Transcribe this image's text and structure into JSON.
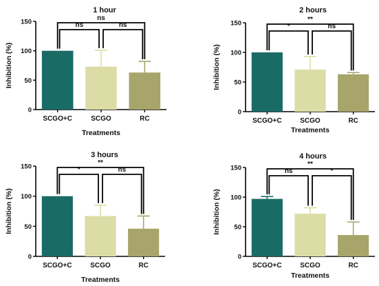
{
  "chart_data": [
    {
      "type": "bar",
      "title": "1 hour",
      "xlabel": "Treatments",
      "ylabel": "Inhibition (%)",
      "ylim": [
        0,
        150
      ],
      "yticks": [
        "0",
        "50",
        "100",
        "150"
      ],
      "categories": [
        "SCGO+C",
        "SCGO",
        "RC"
      ],
      "values": [
        100,
        73,
        63
      ],
      "errors": [
        0,
        28,
        19
      ],
      "colors": [
        "#196B66",
        "#DCDDA6",
        "#A7A56A"
      ],
      "significance": [
        {
          "from": 1,
          "to": 2,
          "label": "ns",
          "level": 1
        },
        {
          "from": 0,
          "to": 1,
          "label": "ns",
          "level": 1
        },
        {
          "from": 0,
          "to": 2,
          "label": "ns",
          "level": 2
        }
      ]
    },
    {
      "type": "bar",
      "title": "2 hours",
      "xlabel": "Treatments",
      "ylabel": "Inhibition (%)",
      "ylim": [
        0,
        150
      ],
      "yticks": [
        "0",
        "50",
        "100",
        "150"
      ],
      "categories": [
        "SCGO+C",
        "SCGO",
        "RC"
      ],
      "values": [
        100,
        71,
        63
      ],
      "errors": [
        0,
        22,
        3
      ],
      "colors": [
        "#196B66",
        "#DCDDA6",
        "#A7A56A"
      ],
      "significance": [
        {
          "from": 0,
          "to": 1,
          "label": "*",
          "level": 1
        },
        {
          "from": 1,
          "to": 2,
          "label": "ns",
          "level": 1
        },
        {
          "from": 0,
          "to": 2,
          "label": "**",
          "level": 2
        }
      ]
    },
    {
      "type": "bar",
      "title": "3 hours",
      "xlabel": "Treatments",
      "ylabel": "Inhibition (%)",
      "ylim": [
        0,
        150
      ],
      "yticks": [
        "0",
        "50",
        "100",
        "150"
      ],
      "categories": [
        "SCGO+C",
        "SCGO",
        "RC"
      ],
      "values": [
        100,
        67,
        46
      ],
      "errors": [
        0,
        18,
        21
      ],
      "colors": [
        "#196B66",
        "#DCDDA6",
        "#A7A56A"
      ],
      "significance": [
        {
          "from": 0,
          "to": 1,
          "label": "*",
          "level": 1
        },
        {
          "from": 1,
          "to": 2,
          "label": "ns",
          "level": 1
        },
        {
          "from": 0,
          "to": 2,
          "label": "**",
          "level": 2
        }
      ]
    },
    {
      "type": "bar",
      "title": "4 hours",
      "xlabel": "Treatments",
      "ylabel": "Inhibition (%)",
      "ylim": [
        0,
        150
      ],
      "yticks": [
        "0",
        "50",
        "100",
        "150"
      ],
      "categories": [
        "SCGO+C",
        "SCGO",
        "RC"
      ],
      "values": [
        97,
        72,
        36
      ],
      "errors": [
        4,
        10,
        22
      ],
      "colors": [
        "#196B66",
        "#DCDDA6",
        "#A7A56A"
      ],
      "significance": [
        {
          "from": 0,
          "to": 1,
          "label": "ns",
          "level": 1
        },
        {
          "from": 1,
          "to": 2,
          "label": "*",
          "level": 1
        },
        {
          "from": 0,
          "to": 2,
          "label": "**",
          "level": 2
        }
      ]
    }
  ]
}
